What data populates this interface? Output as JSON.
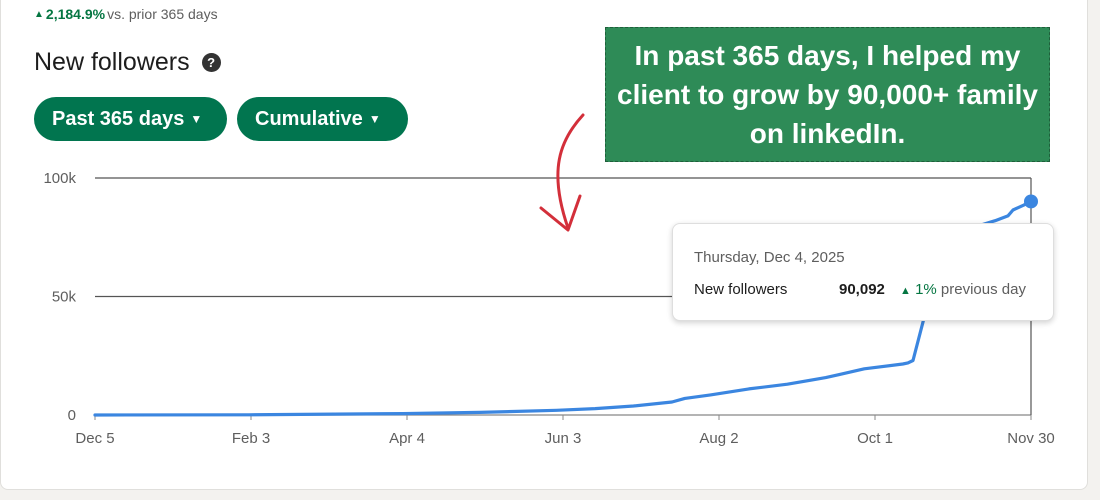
{
  "header": {
    "growth_pct": "2,184.9%",
    "growth_suffix": "vs. prior 365 days",
    "title": "New followers",
    "help_icon": "?"
  },
  "filters": {
    "range_label": "Past 365 days",
    "mode_label": "Cumulative"
  },
  "callout": {
    "text": "In past 365 days, I helped my client to grow by 90,000+ family on linkedIn."
  },
  "tooltip": {
    "date": "Thursday, Dec 4, 2025",
    "label": "New followers",
    "value": "90,092",
    "change_pct": "1%",
    "change_suffix": "previous day"
  },
  "colors": {
    "accent": "#01754f",
    "line": "#3b86e0",
    "arrow": "#d32f3a",
    "callout_bg": "#2e8b57"
  },
  "chart_data": {
    "type": "line",
    "title": "New followers",
    "xlabel": "",
    "ylabel": "",
    "ylim": [
      0,
      100000
    ],
    "yticks": [
      0,
      50000,
      100000
    ],
    "ytick_labels": [
      "0",
      "50k",
      "100k"
    ],
    "xticks": [
      "Dec 5",
      "Feb 3",
      "Apr 4",
      "Jun 3",
      "Aug 2",
      "Oct 1",
      "Nov 30"
    ],
    "grid": true,
    "series": [
      {
        "values_note_x": "days from Dec 5 (0..365)",
        "x": [
          0,
          60,
          120,
          150,
          180,
          195,
          210,
          225,
          230,
          240,
          255,
          270,
          285,
          290,
          300,
          315,
          317,
          319,
          325,
          331,
          340,
          345,
          351,
          356,
          358,
          362,
          365
        ],
        "y": [
          0,
          100,
          600,
          1100,
          2000,
          2700,
          3800,
          5500,
          7000,
          8500,
          11000,
          13000,
          15800,
          17000,
          19500,
          21500,
          22000,
          23000,
          48000,
          65000,
          76000,
          80000,
          82000,
          84000,
          86500,
          88500,
          90092
        ]
      }
    ]
  }
}
